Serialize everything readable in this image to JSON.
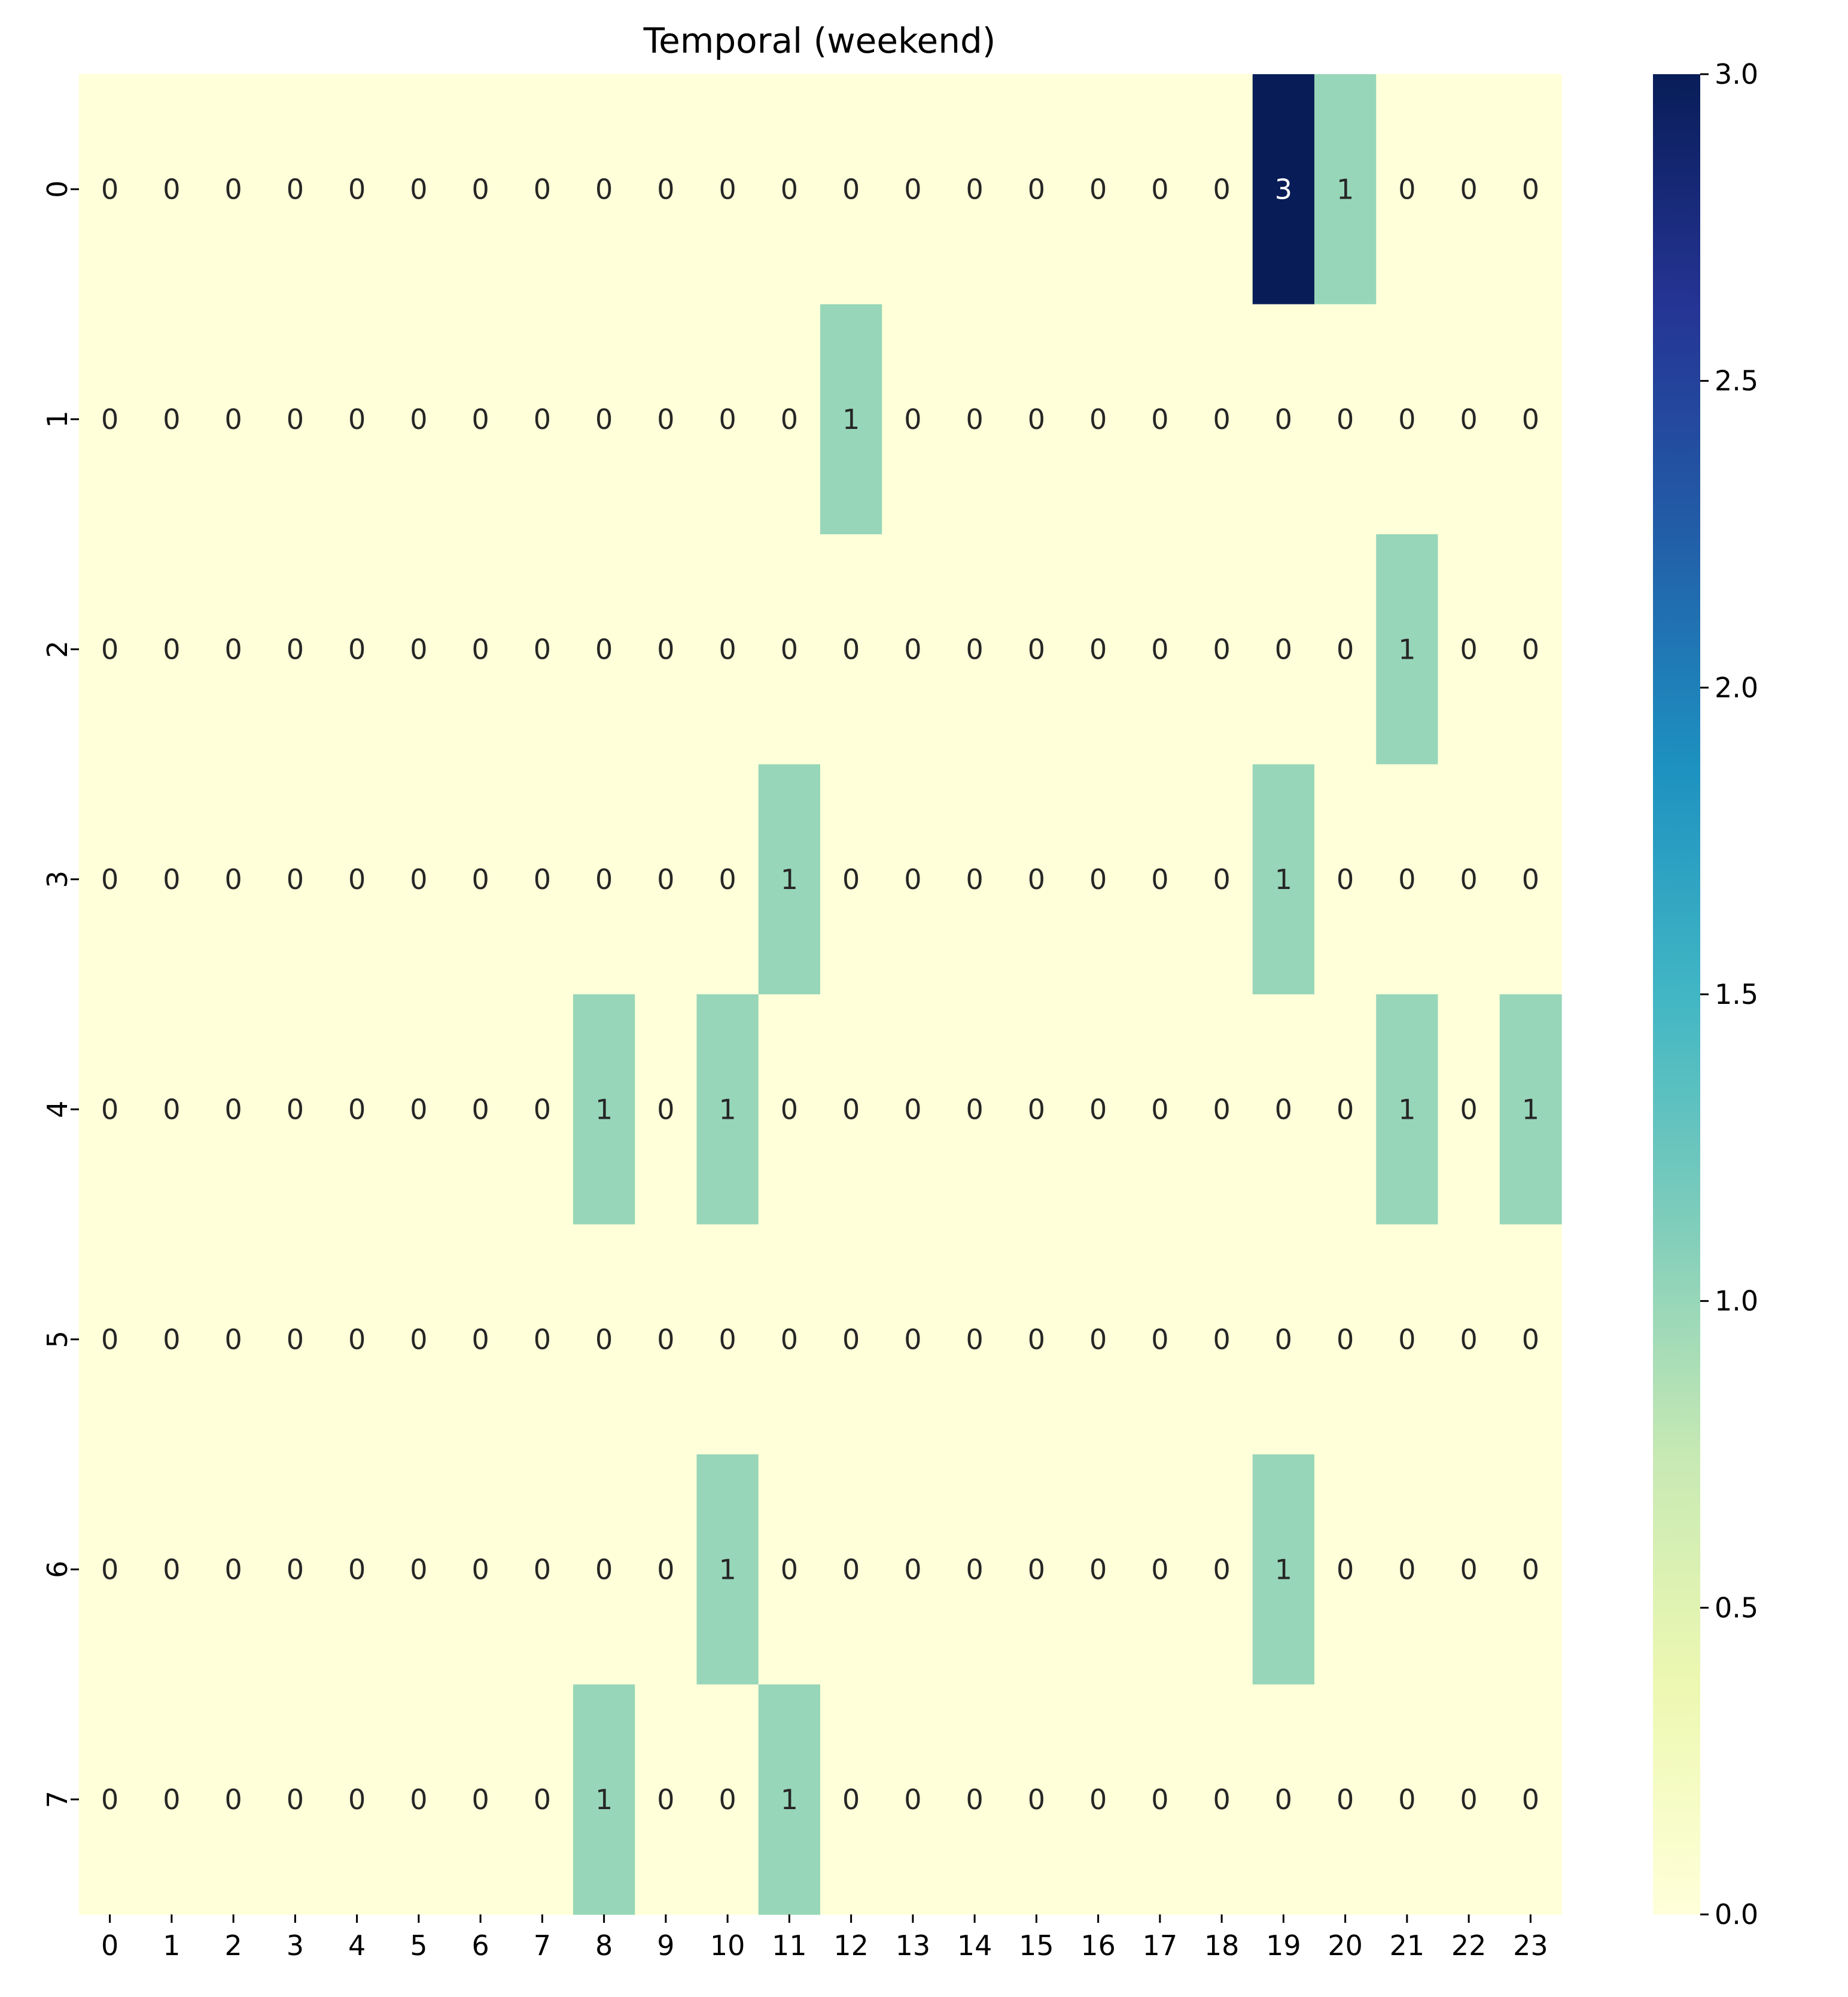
{
  "chart_data": {
    "type": "heatmap",
    "title": "Temporal (weekend)",
    "xlabel": "",
    "ylabel": "",
    "x_categories": [
      "0",
      "1",
      "2",
      "3",
      "4",
      "5",
      "6",
      "7",
      "8",
      "9",
      "10",
      "11",
      "12",
      "13",
      "14",
      "15",
      "16",
      "17",
      "18",
      "19",
      "20",
      "21",
      "22",
      "23"
    ],
    "y_categories": [
      "0",
      "1",
      "2",
      "3",
      "4",
      "5",
      "6",
      "7"
    ],
    "values": [
      [
        0,
        0,
        0,
        0,
        0,
        0,
        0,
        0,
        0,
        0,
        0,
        0,
        0,
        0,
        0,
        0,
        0,
        0,
        0,
        3,
        1,
        0,
        0,
        0
      ],
      [
        0,
        0,
        0,
        0,
        0,
        0,
        0,
        0,
        0,
        0,
        0,
        0,
        1,
        0,
        0,
        0,
        0,
        0,
        0,
        0,
        0,
        0,
        0,
        0
      ],
      [
        0,
        0,
        0,
        0,
        0,
        0,
        0,
        0,
        0,
        0,
        0,
        0,
        0,
        0,
        0,
        0,
        0,
        0,
        0,
        0,
        0,
        1,
        0,
        0
      ],
      [
        0,
        0,
        0,
        0,
        0,
        0,
        0,
        0,
        0,
        0,
        0,
        1,
        0,
        0,
        0,
        0,
        0,
        0,
        0,
        1,
        0,
        0,
        0,
        0
      ],
      [
        0,
        0,
        0,
        0,
        0,
        0,
        0,
        0,
        1,
        0,
        1,
        0,
        0,
        0,
        0,
        0,
        0,
        0,
        0,
        0,
        0,
        1,
        0,
        1
      ],
      [
        0,
        0,
        0,
        0,
        0,
        0,
        0,
        0,
        0,
        0,
        0,
        0,
        0,
        0,
        0,
        0,
        0,
        0,
        0,
        0,
        0,
        0,
        0,
        0
      ],
      [
        0,
        0,
        0,
        0,
        0,
        0,
        0,
        0,
        0,
        0,
        1,
        0,
        0,
        0,
        0,
        0,
        0,
        0,
        0,
        1,
        0,
        0,
        0,
        0
      ],
      [
        0,
        0,
        0,
        0,
        0,
        0,
        0,
        0,
        1,
        0,
        0,
        1,
        0,
        0,
        0,
        0,
        0,
        0,
        0,
        0,
        0,
        0,
        0,
        0
      ]
    ],
    "colormap": "YlGnBu",
    "color_range": [
      0,
      3
    ],
    "colorbar_ticks": [
      "0.0",
      "0.5",
      "1.0",
      "1.5",
      "2.0",
      "2.5",
      "3.0"
    ],
    "annotated": true,
    "grid": false,
    "colors": {
      "low": "#ffffd9",
      "one": "#97d6bb",
      "high": "#081d58"
    }
  }
}
